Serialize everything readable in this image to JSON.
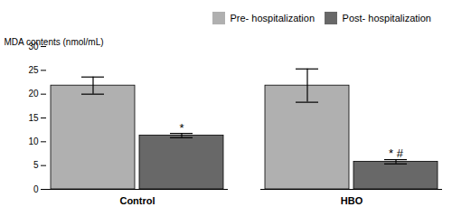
{
  "chart_data": {
    "type": "bar",
    "categories": [
      "Control",
      "HBO"
    ],
    "series": [
      {
        "name": "Pre- hospitalization",
        "color": "#b0b0b0",
        "values": [
          21.8,
          21.8
        ],
        "errors": [
          1.8,
          3.5
        ]
      },
      {
        "name": "Post- hospitalization",
        "color": "#686868",
        "values": [
          11.3,
          5.8
        ],
        "errors": [
          0.45,
          0.45
        ]
      }
    ],
    "ylabel": "MDA contents (nmol/mL)",
    "ylim": [
      0,
      30
    ],
    "yticks": [
      0,
      5,
      10,
      15,
      20,
      25,
      30
    ],
    "grid": false,
    "legend": "upper right",
    "annotations": [
      {
        "text": "*",
        "category": "Control",
        "series": "Post- hospitalization",
        "y": 12.0
      },
      {
        "text": "* #",
        "category": "HBO",
        "series": "Post- hospitalization",
        "y": 6.8
      }
    ]
  }
}
